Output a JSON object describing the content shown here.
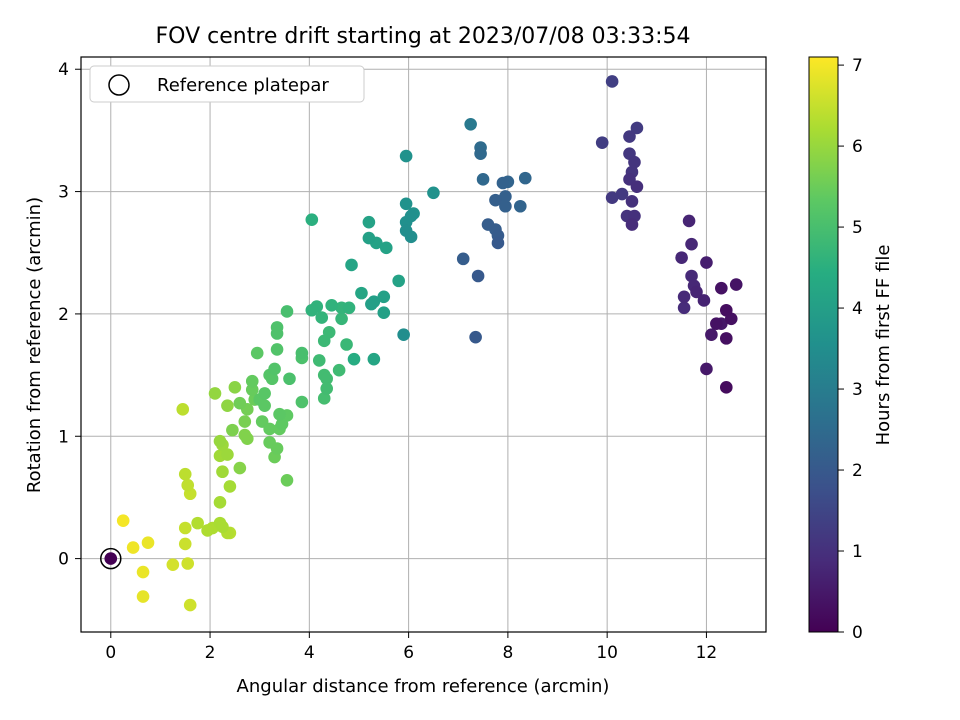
{
  "chart_data": {
    "type": "scatter",
    "title": "FOV centre drift starting at 2023/07/08 03:33:54",
    "xlabel": "Angular distance from reference (arcmin)",
    "ylabel": "Rotation from reference (arcmin)",
    "xlim": [
      -0.6,
      13.2
    ],
    "ylim": [
      -0.6,
      4.1
    ],
    "xticks": [
      0,
      2,
      4,
      6,
      8,
      10,
      12
    ],
    "yticks": [
      0,
      1,
      2,
      3,
      4
    ],
    "grid": true,
    "legend": {
      "placement": "top-left",
      "entries": [
        "Reference platepar"
      ]
    },
    "colorbar": {
      "label": "Hours from first FF file",
      "range": [
        0,
        7.1
      ],
      "ticks": [
        0,
        1,
        2,
        3,
        4,
        5,
        6,
        7
      ],
      "colormap": "viridis"
    },
    "reference_point": {
      "x": 0,
      "y": 0
    },
    "points": [
      {
        "x": 0.0,
        "y": 0.0,
        "c": 0.0
      },
      {
        "x": 12.4,
        "y": 1.4,
        "c": 0.2
      },
      {
        "x": 12.5,
        "y": 1.96,
        "c": 0.3
      },
      {
        "x": 12.4,
        "y": 2.03,
        "c": 0.25
      },
      {
        "x": 12.6,
        "y": 2.24,
        "c": 0.4
      },
      {
        "x": 12.4,
        "y": 1.8,
        "c": 0.3
      },
      {
        "x": 12.2,
        "y": 1.92,
        "c": 0.35
      },
      {
        "x": 12.3,
        "y": 1.92,
        "c": 0.45
      },
      {
        "x": 12.1,
        "y": 1.83,
        "c": 0.5
      },
      {
        "x": 12.3,
        "y": 2.21,
        "c": 0.35
      },
      {
        "x": 12.0,
        "y": 1.55,
        "c": 0.5
      },
      {
        "x": 12.0,
        "y": 2.42,
        "c": 0.6
      },
      {
        "x": 11.95,
        "y": 2.11,
        "c": 0.7
      },
      {
        "x": 11.8,
        "y": 2.18,
        "c": 0.75
      },
      {
        "x": 11.75,
        "y": 2.23,
        "c": 0.8
      },
      {
        "x": 11.7,
        "y": 2.31,
        "c": 0.85
      },
      {
        "x": 11.55,
        "y": 2.05,
        "c": 0.9
      },
      {
        "x": 11.55,
        "y": 2.14,
        "c": 0.85
      },
      {
        "x": 11.5,
        "y": 2.46,
        "c": 0.8
      },
      {
        "x": 11.7,
        "y": 2.57,
        "c": 0.8
      },
      {
        "x": 11.65,
        "y": 2.76,
        "c": 0.75
      },
      {
        "x": 10.5,
        "y": 2.73,
        "c": 0.9
      },
      {
        "x": 10.55,
        "y": 2.8,
        "c": 1.0
      },
      {
        "x": 10.4,
        "y": 2.8,
        "c": 1.05
      },
      {
        "x": 10.5,
        "y": 2.92,
        "c": 1.0
      },
      {
        "x": 10.6,
        "y": 3.04,
        "c": 0.95
      },
      {
        "x": 10.45,
        "y": 3.1,
        "c": 1.0
      },
      {
        "x": 10.5,
        "y": 3.16,
        "c": 1.1
      },
      {
        "x": 10.55,
        "y": 3.24,
        "c": 1.1
      },
      {
        "x": 10.45,
        "y": 3.31,
        "c": 1.15
      },
      {
        "x": 10.3,
        "y": 2.98,
        "c": 1.2
      },
      {
        "x": 10.1,
        "y": 2.95,
        "c": 1.2
      },
      {
        "x": 10.45,
        "y": 3.45,
        "c": 1.2
      },
      {
        "x": 10.6,
        "y": 3.52,
        "c": 1.25
      },
      {
        "x": 9.9,
        "y": 3.4,
        "c": 1.3
      },
      {
        "x": 10.1,
        "y": 3.9,
        "c": 1.35
      },
      {
        "x": 7.35,
        "y": 1.81,
        "c": 2.0
      },
      {
        "x": 7.1,
        "y": 2.45,
        "c": 2.1
      },
      {
        "x": 7.4,
        "y": 2.31,
        "c": 2.0
      },
      {
        "x": 7.8,
        "y": 2.58,
        "c": 2.0
      },
      {
        "x": 7.8,
        "y": 2.64,
        "c": 2.05
      },
      {
        "x": 7.75,
        "y": 2.69,
        "c": 2.1
      },
      {
        "x": 7.6,
        "y": 2.73,
        "c": 2.1
      },
      {
        "x": 7.75,
        "y": 2.93,
        "c": 2.15
      },
      {
        "x": 7.95,
        "y": 2.88,
        "c": 2.2
      },
      {
        "x": 7.95,
        "y": 2.96,
        "c": 2.2
      },
      {
        "x": 7.9,
        "y": 3.07,
        "c": 2.25
      },
      {
        "x": 8.0,
        "y": 3.08,
        "c": 2.3
      },
      {
        "x": 8.25,
        "y": 2.88,
        "c": 2.3
      },
      {
        "x": 8.35,
        "y": 3.11,
        "c": 2.35
      },
      {
        "x": 7.5,
        "y": 3.1,
        "c": 2.4
      },
      {
        "x": 7.45,
        "y": 3.31,
        "c": 2.45
      },
      {
        "x": 7.45,
        "y": 3.36,
        "c": 2.5
      },
      {
        "x": 7.25,
        "y": 3.55,
        "c": 2.9
      },
      {
        "x": 5.9,
        "y": 1.83,
        "c": 3.5
      },
      {
        "x": 5.95,
        "y": 2.68,
        "c": 3.5
      },
      {
        "x": 6.05,
        "y": 2.63,
        "c": 3.5
      },
      {
        "x": 5.95,
        "y": 2.75,
        "c": 3.55
      },
      {
        "x": 6.05,
        "y": 2.8,
        "c": 3.55
      },
      {
        "x": 6.1,
        "y": 2.82,
        "c": 3.6
      },
      {
        "x": 5.95,
        "y": 2.9,
        "c": 3.6
      },
      {
        "x": 6.5,
        "y": 2.99,
        "c": 3.6
      },
      {
        "x": 5.95,
        "y": 3.29,
        "c": 3.6
      },
      {
        "x": 5.3,
        "y": 2.1,
        "c": 4.0
      },
      {
        "x": 5.25,
        "y": 2.08,
        "c": 4.0
      },
      {
        "x": 5.5,
        "y": 2.01,
        "c": 4.05
      },
      {
        "x": 5.5,
        "y": 2.14,
        "c": 4.05
      },
      {
        "x": 5.2,
        "y": 2.62,
        "c": 4.05
      },
      {
        "x": 5.35,
        "y": 2.58,
        "c": 4.1
      },
      {
        "x": 5.55,
        "y": 2.54,
        "c": 4.1
      },
      {
        "x": 5.2,
        "y": 2.75,
        "c": 4.1
      },
      {
        "x": 5.8,
        "y": 2.27,
        "c": 4.1
      },
      {
        "x": 4.85,
        "y": 2.4,
        "c": 4.15
      },
      {
        "x": 5.05,
        "y": 2.17,
        "c": 4.2
      },
      {
        "x": 5.3,
        "y": 1.63,
        "c": 4.2
      },
      {
        "x": 4.9,
        "y": 1.63,
        "c": 4.4
      },
      {
        "x": 4.05,
        "y": 2.77,
        "c": 4.5
      },
      {
        "x": 4.15,
        "y": 2.06,
        "c": 4.6
      },
      {
        "x": 4.05,
        "y": 2.03,
        "c": 4.6
      },
      {
        "x": 4.25,
        "y": 1.97,
        "c": 4.65
      },
      {
        "x": 4.45,
        "y": 2.07,
        "c": 4.6
      },
      {
        "x": 4.65,
        "y": 2.05,
        "c": 4.65
      },
      {
        "x": 4.8,
        "y": 2.05,
        "c": 4.6
      },
      {
        "x": 4.65,
        "y": 1.96,
        "c": 4.7
      },
      {
        "x": 4.75,
        "y": 1.75,
        "c": 4.75
      },
      {
        "x": 4.4,
        "y": 1.85,
        "c": 4.8
      },
      {
        "x": 4.3,
        "y": 1.78,
        "c": 4.8
      },
      {
        "x": 4.2,
        "y": 1.62,
        "c": 4.85
      },
      {
        "x": 4.6,
        "y": 1.54,
        "c": 4.85
      },
      {
        "x": 4.3,
        "y": 1.5,
        "c": 4.9
      },
      {
        "x": 4.35,
        "y": 1.47,
        "c": 4.9
      },
      {
        "x": 4.35,
        "y": 1.39,
        "c": 4.9
      },
      {
        "x": 4.3,
        "y": 1.31,
        "c": 4.95
      },
      {
        "x": 3.55,
        "y": 2.02,
        "c": 5.0
      },
      {
        "x": 3.85,
        "y": 1.68,
        "c": 5.0
      },
      {
        "x": 3.85,
        "y": 1.64,
        "c": 5.05
      },
      {
        "x": 3.6,
        "y": 1.47,
        "c": 5.05
      },
      {
        "x": 3.85,
        "y": 1.28,
        "c": 5.1
      },
      {
        "x": 3.35,
        "y": 1.89,
        "c": 5.1
      },
      {
        "x": 3.35,
        "y": 1.84,
        "c": 5.1
      },
      {
        "x": 3.35,
        "y": 1.71,
        "c": 5.15
      },
      {
        "x": 3.3,
        "y": 1.55,
        "c": 5.15
      },
      {
        "x": 3.2,
        "y": 1.5,
        "c": 5.2
      },
      {
        "x": 3.25,
        "y": 1.47,
        "c": 5.2
      },
      {
        "x": 3.1,
        "y": 1.35,
        "c": 5.25
      },
      {
        "x": 3.0,
        "y": 1.3,
        "c": 5.3
      },
      {
        "x": 3.1,
        "y": 1.25,
        "c": 5.3
      },
      {
        "x": 3.4,
        "y": 1.18,
        "c": 5.3
      },
      {
        "x": 3.55,
        "y": 1.17,
        "c": 5.35
      },
      {
        "x": 3.45,
        "y": 1.1,
        "c": 5.35
      },
      {
        "x": 3.05,
        "y": 1.12,
        "c": 5.4
      },
      {
        "x": 3.2,
        "y": 1.06,
        "c": 5.4
      },
      {
        "x": 3.4,
        "y": 1.06,
        "c": 5.4
      },
      {
        "x": 3.2,
        "y": 0.95,
        "c": 5.45
      },
      {
        "x": 3.35,
        "y": 0.9,
        "c": 5.45
      },
      {
        "x": 3.3,
        "y": 0.83,
        "c": 5.5
      },
      {
        "x": 3.55,
        "y": 0.64,
        "c": 5.5
      },
      {
        "x": 2.95,
        "y": 1.68,
        "c": 5.3
      },
      {
        "x": 2.85,
        "y": 1.45,
        "c": 5.4
      },
      {
        "x": 2.85,
        "y": 1.38,
        "c": 5.45
      },
      {
        "x": 2.9,
        "y": 1.3,
        "c": 5.5
      },
      {
        "x": 2.6,
        "y": 1.27,
        "c": 5.55
      },
      {
        "x": 2.75,
        "y": 1.22,
        "c": 5.6
      },
      {
        "x": 2.7,
        "y": 1.12,
        "c": 5.65
      },
      {
        "x": 2.45,
        "y": 1.05,
        "c": 5.7
      },
      {
        "x": 2.7,
        "y": 1.01,
        "c": 5.75
      },
      {
        "x": 2.75,
        "y": 0.98,
        "c": 5.75
      },
      {
        "x": 2.6,
        "y": 0.74,
        "c": 5.8
      },
      {
        "x": 2.5,
        "y": 1.4,
        "c": 5.85
      },
      {
        "x": 2.35,
        "y": 1.25,
        "c": 5.9
      },
      {
        "x": 2.1,
        "y": 1.35,
        "c": 5.95
      },
      {
        "x": 2.2,
        "y": 0.96,
        "c": 6.0
      },
      {
        "x": 2.25,
        "y": 0.93,
        "c": 6.05
      },
      {
        "x": 2.35,
        "y": 0.85,
        "c": 6.05
      },
      {
        "x": 2.2,
        "y": 0.84,
        "c": 6.1
      },
      {
        "x": 2.25,
        "y": 0.71,
        "c": 6.1
      },
      {
        "x": 2.4,
        "y": 0.59,
        "c": 6.15
      },
      {
        "x": 2.2,
        "y": 0.46,
        "c": 6.15
      },
      {
        "x": 2.2,
        "y": 0.29,
        "c": 6.2
      },
      {
        "x": 2.25,
        "y": 0.26,
        "c": 6.2
      },
      {
        "x": 2.05,
        "y": 0.25,
        "c": 6.25
      },
      {
        "x": 1.95,
        "y": 0.23,
        "c": 6.25
      },
      {
        "x": 1.75,
        "y": 0.29,
        "c": 6.3
      },
      {
        "x": 2.35,
        "y": 0.21,
        "c": 6.3
      },
      {
        "x": 2.4,
        "y": 0.21,
        "c": 6.35
      },
      {
        "x": 1.5,
        "y": 0.69,
        "c": 6.4
      },
      {
        "x": 1.55,
        "y": 0.6,
        "c": 6.45
      },
      {
        "x": 1.6,
        "y": 0.53,
        "c": 6.5
      },
      {
        "x": 1.5,
        "y": 0.25,
        "c": 6.5
      },
      {
        "x": 1.5,
        "y": 0.12,
        "c": 6.55
      },
      {
        "x": 1.45,
        "y": 1.22,
        "c": 6.4
      },
      {
        "x": 1.55,
        "y": -0.04,
        "c": 6.6
      },
      {
        "x": 1.25,
        "y": -0.05,
        "c": 6.65
      },
      {
        "x": 1.6,
        "y": -0.38,
        "c": 6.6
      },
      {
        "x": 0.75,
        "y": 0.13,
        "c": 6.9
      },
      {
        "x": 0.45,
        "y": 0.09,
        "c": 6.95
      },
      {
        "x": 0.25,
        "y": 0.31,
        "c": 7.0
      },
      {
        "x": 0.65,
        "y": -0.11,
        "c": 6.9
      },
      {
        "x": 0.65,
        "y": -0.31,
        "c": 6.85
      }
    ]
  }
}
